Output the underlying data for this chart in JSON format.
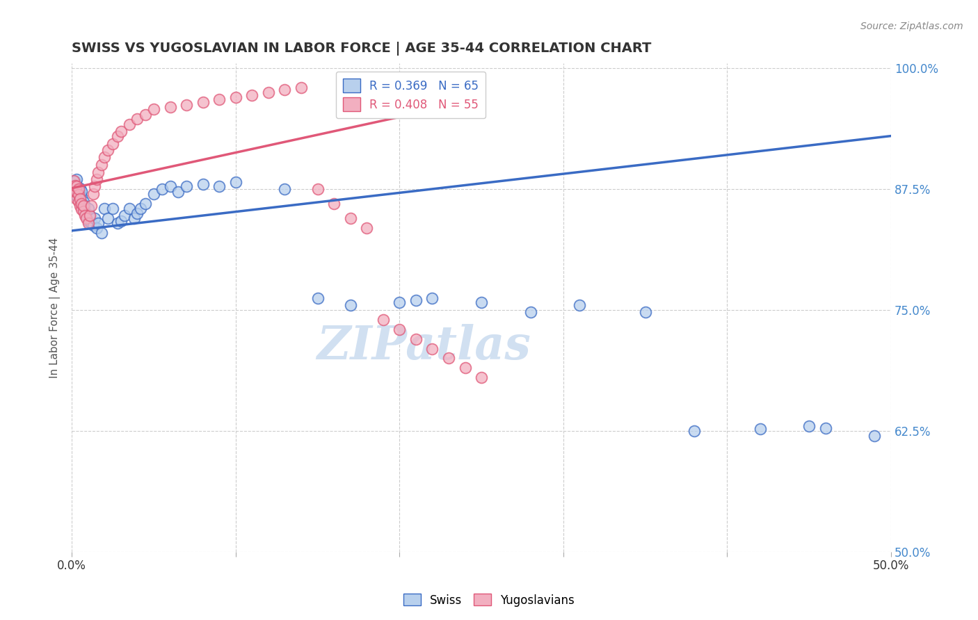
{
  "title": "SWISS VS YUGOSLAVIAN IN LABOR FORCE | AGE 35-44 CORRELATION CHART",
  "ylabel": "In Labor Force | Age 35-44",
  "source_text": "Source: ZipAtlas.com",
  "watermark": "ZIPatlas",
  "legend_swiss": "Swiss",
  "legend_yugo": "Yugoslavians",
  "R_swiss": 0.369,
  "N_swiss": 65,
  "R_yugo": 0.408,
  "N_yugo": 55,
  "xlim": [
    0.0,
    0.5
  ],
  "ylim": [
    0.5,
    1.005
  ],
  "yticks": [
    0.5,
    0.625,
    0.75,
    0.875,
    1.0
  ],
  "ytick_labels": [
    "50.0%",
    "62.5%",
    "75.0%",
    "87.5%",
    "100.0%"
  ],
  "xticks": [
    0.0,
    0.1,
    0.2,
    0.3,
    0.4,
    0.5
  ],
  "xtick_labels": [
    "0.0%",
    "",
    "",
    "",
    "",
    "50.0%"
  ],
  "background_color": "#ffffff",
  "grid_color": "#cccccc",
  "swiss_color": "#b8d0ed",
  "yugo_color": "#f2afc0",
  "swiss_line_color": "#3a6bc4",
  "yugo_line_color": "#e05878",
  "title_color": "#333333",
  "axis_label_color": "#555555",
  "right_tick_color": "#4488cc",
  "swiss_x": [
    0.001,
    0.001,
    0.002,
    0.002,
    0.002,
    0.003,
    0.003,
    0.003,
    0.003,
    0.004,
    0.004,
    0.005,
    0.005,
    0.005,
    0.006,
    0.006,
    0.006,
    0.007,
    0.007,
    0.008,
    0.008,
    0.009,
    0.01,
    0.01,
    0.011,
    0.012,
    0.013,
    0.014,
    0.015,
    0.016,
    0.018,
    0.02,
    0.022,
    0.025,
    0.028,
    0.03,
    0.032,
    0.035,
    0.038,
    0.04,
    0.042,
    0.045,
    0.05,
    0.055,
    0.06,
    0.065,
    0.07,
    0.08,
    0.09,
    0.1,
    0.13,
    0.15,
    0.17,
    0.2,
    0.21,
    0.22,
    0.25,
    0.28,
    0.31,
    0.35,
    0.38,
    0.42,
    0.45,
    0.46,
    0.49
  ],
  "swiss_y": [
    0.875,
    0.882,
    0.872,
    0.877,
    0.883,
    0.868,
    0.874,
    0.879,
    0.885,
    0.87,
    0.876,
    0.864,
    0.87,
    0.876,
    0.86,
    0.867,
    0.873,
    0.855,
    0.862,
    0.852,
    0.858,
    0.848,
    0.842,
    0.855,
    0.848,
    0.84,
    0.838,
    0.845,
    0.835,
    0.84,
    0.83,
    0.855,
    0.845,
    0.855,
    0.84,
    0.842,
    0.848,
    0.855,
    0.845,
    0.85,
    0.855,
    0.86,
    0.87,
    0.875,
    0.878,
    0.872,
    0.878,
    0.88,
    0.878,
    0.882,
    0.875,
    0.762,
    0.755,
    0.758,
    0.76,
    0.762,
    0.758,
    0.748,
    0.755,
    0.748,
    0.625,
    0.627,
    0.63,
    0.628,
    0.62
  ],
  "yugo_x": [
    0.001,
    0.001,
    0.002,
    0.002,
    0.003,
    0.003,
    0.003,
    0.004,
    0.004,
    0.004,
    0.005,
    0.005,
    0.006,
    0.006,
    0.007,
    0.007,
    0.008,
    0.009,
    0.01,
    0.011,
    0.012,
    0.013,
    0.014,
    0.015,
    0.016,
    0.018,
    0.02,
    0.022,
    0.025,
    0.028,
    0.03,
    0.035,
    0.04,
    0.045,
    0.05,
    0.06,
    0.07,
    0.08,
    0.09,
    0.1,
    0.11,
    0.12,
    0.13,
    0.14,
    0.15,
    0.16,
    0.17,
    0.18,
    0.19,
    0.2,
    0.21,
    0.22,
    0.23,
    0.24,
    0.25
  ],
  "yugo_y": [
    0.878,
    0.884,
    0.872,
    0.879,
    0.865,
    0.872,
    0.878,
    0.862,
    0.869,
    0.875,
    0.858,
    0.865,
    0.854,
    0.86,
    0.852,
    0.858,
    0.848,
    0.845,
    0.84,
    0.848,
    0.858,
    0.87,
    0.878,
    0.885,
    0.892,
    0.9,
    0.908,
    0.915,
    0.922,
    0.93,
    0.935,
    0.942,
    0.948,
    0.952,
    0.958,
    0.96,
    0.962,
    0.965,
    0.968,
    0.97,
    0.972,
    0.975,
    0.978,
    0.98,
    0.875,
    0.86,
    0.845,
    0.835,
    0.74,
    0.73,
    0.72,
    0.71,
    0.7,
    0.69,
    0.68
  ]
}
